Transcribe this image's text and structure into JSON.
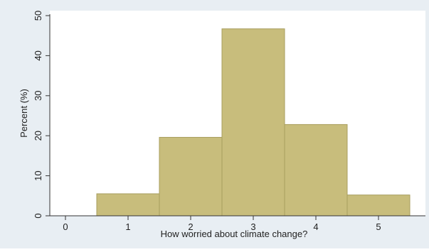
{
  "chart_data": {
    "type": "bar",
    "title": "",
    "xlabel": "How worried about climate change?",
    "ylabel": "Percent (%)",
    "categories": [
      "1",
      "2",
      "3",
      "4",
      "5"
    ],
    "x": [
      1,
      2,
      3,
      4,
      5
    ],
    "values": [
      5.5,
      19.6,
      46.7,
      22.8,
      5.2
    ],
    "xlim": [
      -0.25,
      5.75
    ],
    "ylim": [
      0,
      50
    ],
    "xticks": [
      0,
      1,
      2,
      3,
      4,
      5
    ],
    "yticks": [
      0,
      10,
      20,
      30,
      40,
      50
    ],
    "grid": false,
    "bar_color": "#c8bd7c",
    "bar_edge_color": "#a89e5e",
    "outer_background": "#e8eef3",
    "plot_background": "#ffffff"
  }
}
